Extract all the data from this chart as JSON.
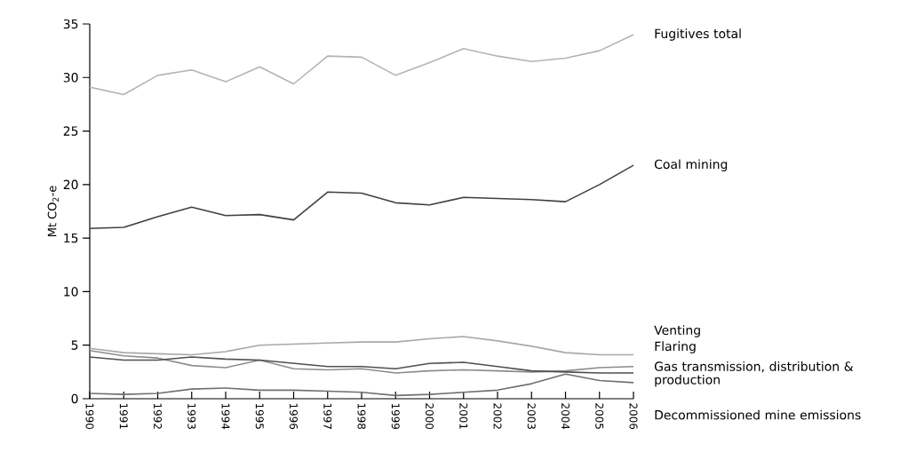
{
  "chart_data": {
    "type": "line",
    "ylabel": "Mt CO$_{2}$-e",
    "x": [
      1990,
      1991,
      1992,
      1993,
      1994,
      1995,
      1996,
      1997,
      1998,
      1999,
      2000,
      2001,
      2002,
      2003,
      2004,
      2005,
      2006
    ],
    "xlim": [
      1990,
      2006
    ],
    "xticks": [
      1990,
      1991,
      1992,
      1993,
      1994,
      1995,
      1996,
      1997,
      1998,
      1999,
      2000,
      2001,
      2002,
      2003,
      2004,
      2005,
      2006
    ],
    "ylim": [
      0,
      35
    ],
    "yticks": [
      0,
      5,
      10,
      15,
      20,
      25,
      30,
      35
    ],
    "grid": false,
    "legend": false,
    "marker": "none",
    "line_style": "solid",
    "series": [
      {
        "name": "Fugitives total",
        "color": "#b4b4b4",
        "values": [
          29.1,
          28.4,
          30.2,
          30.7,
          29.6,
          31.0,
          29.4,
          32.0,
          31.9,
          30.2,
          31.4,
          32.7,
          32.0,
          31.5,
          31.8,
          32.5,
          34.0
        ]
      },
      {
        "name": "Coal mining",
        "color": "#404040",
        "values": [
          15.9,
          16.0,
          17.0,
          17.9,
          17.1,
          17.2,
          16.7,
          19.3,
          19.2,
          18.3,
          18.1,
          18.8,
          18.7,
          18.6,
          18.4,
          20.0,
          21.8
        ]
      },
      {
        "name": "Venting",
        "color": "#a8a8a8",
        "values": [
          4.7,
          4.3,
          4.2,
          4.1,
          4.4,
          5.0,
          5.1,
          5.2,
          5.3,
          5.3,
          5.6,
          5.8,
          5.4,
          4.9,
          4.3,
          4.1,
          4.1
        ]
      },
      {
        "name": "Flaring",
        "color": "#8c8c8c",
        "values": [
          4.5,
          4.0,
          3.8,
          3.1,
          2.9,
          3.6,
          2.8,
          2.7,
          2.8,
          2.4,
          2.6,
          2.7,
          2.6,
          2.5,
          2.6,
          2.9,
          3.0
        ]
      },
      {
        "name": "Gas transmission, distribution & production",
        "color": "#505050",
        "values": [
          3.9,
          3.6,
          3.6,
          3.9,
          3.7,
          3.6,
          3.3,
          3.0,
          3.0,
          2.8,
          3.3,
          3.4,
          3.0,
          2.6,
          2.5,
          2.4,
          2.4
        ]
      },
      {
        "name": "Decommissioned mine emissions",
        "color": "#707070",
        "values": [
          0.5,
          0.4,
          0.5,
          0.9,
          1.0,
          0.8,
          0.8,
          0.7,
          0.6,
          0.3,
          0.4,
          0.6,
          0.8,
          1.4,
          2.3,
          1.7,
          1.5
        ]
      }
    ]
  }
}
